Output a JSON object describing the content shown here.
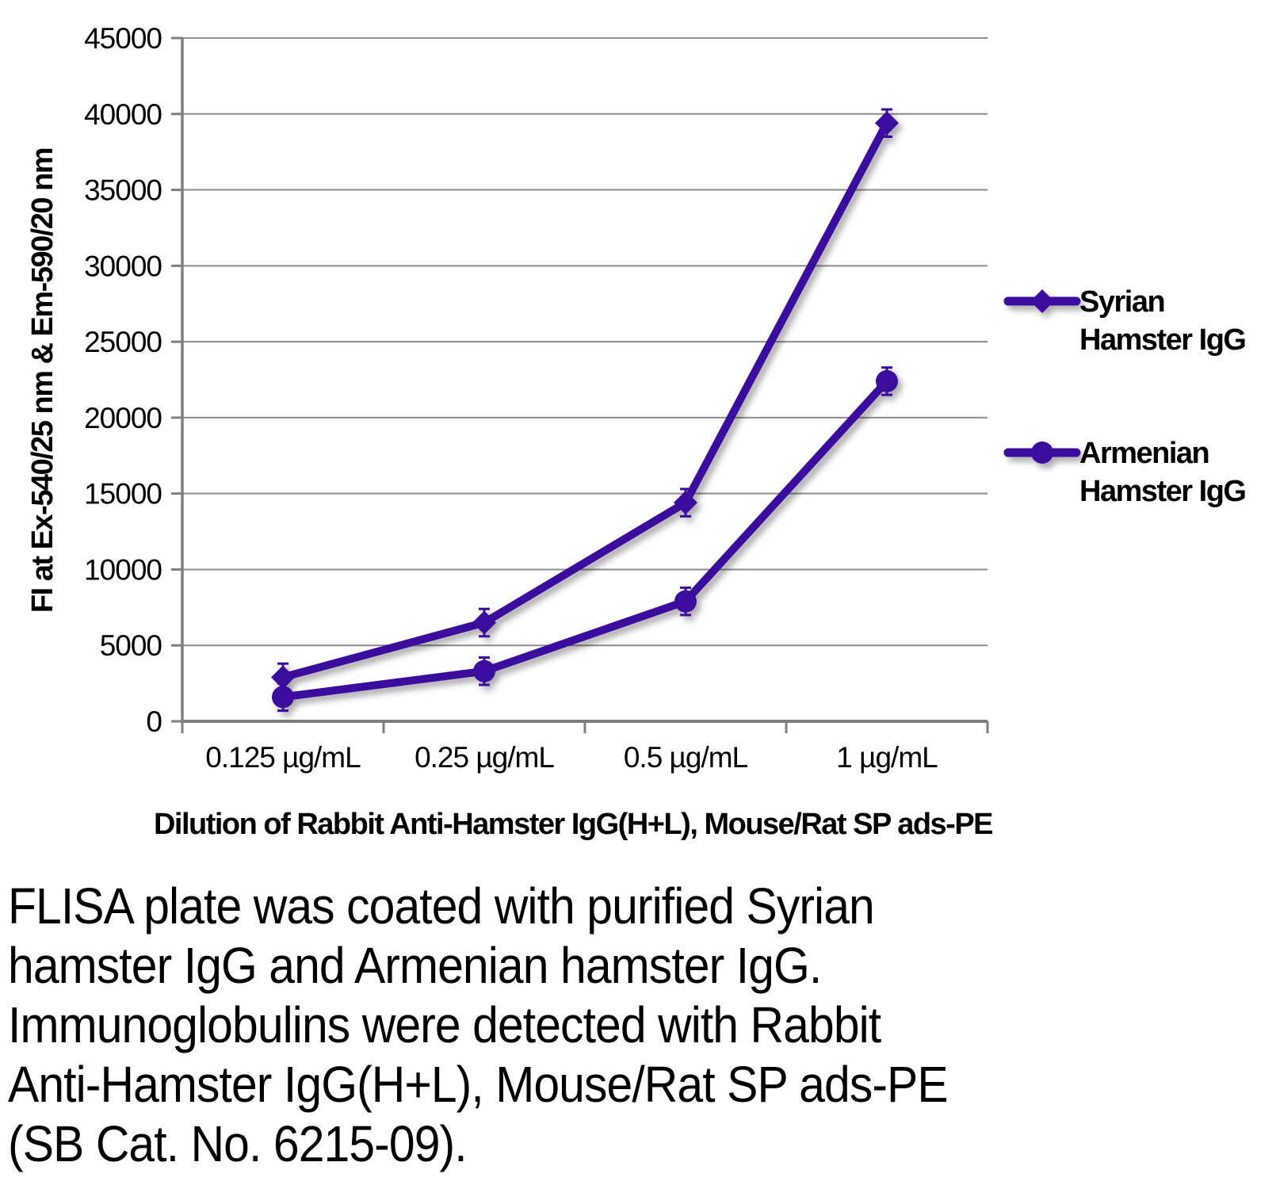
{
  "chart_data": {
    "type": "line",
    "categories": [
      "0.125 µg/mL",
      "0.25 µg/mL",
      "0.5 µg/mL",
      "1 µg/mL"
    ],
    "series": [
      {
        "name": "Syrian Hamster IgG",
        "marker": "diamond",
        "values": [
          2900,
          6500,
          14400,
          39400
        ],
        "error": 900
      },
      {
        "name": "Armenian Hamster IgG",
        "marker": "circle",
        "values": [
          1600,
          3300,
          7900,
          22400
        ],
        "error": 900
      }
    ],
    "title": "",
    "xlabel": "Dilution of Rabbit Anti-Hamster IgG(H+L), Mouse/Rat SP ads-PE",
    "ylabel": "FI at Ex-540/25 nm & Em-590/20 nm",
    "ylim": [
      0,
      45000
    ],
    "ytick_step": 5000,
    "grid": true,
    "legend_position": "right",
    "colors": {
      "series_line": "#3A0D9E",
      "gridline": "#8C8C8C",
      "axis": "#7F7F7F",
      "text": "#000000"
    }
  },
  "caption": {
    "lines": [
      "FLISA plate was coated with purified Syrian",
      "hamster IgG and Armenian hamster IgG.",
      "Immunoglobulins were detected with Rabbit",
      "Anti-Hamster IgG(H+L), Mouse/Rat SP ads-PE",
      "(SB Cat. No. 6215-09)."
    ]
  }
}
